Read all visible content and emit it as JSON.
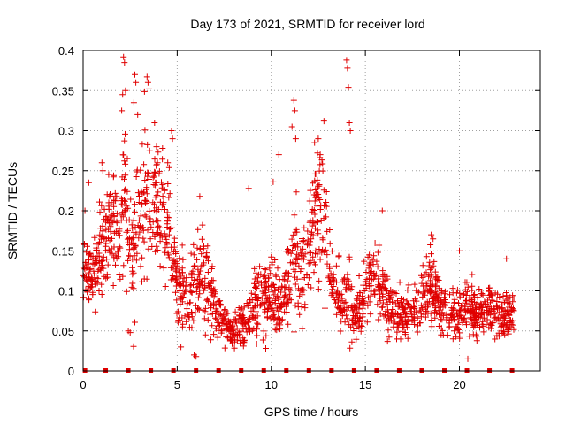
{
  "chart_data": {
    "type": "scatter",
    "title": "Day 173 of 2021, SRMTID for receiver lord",
    "xlabel": "GPS time / hours",
    "ylabel": "SRMTID / TECUs",
    "xlim": [
      0,
      24.3
    ],
    "ylim": [
      0,
      0.4
    ],
    "xticks": [
      0,
      5,
      10,
      15,
      20
    ],
    "xtick_labels": [
      "0",
      "5",
      "10",
      "15",
      "20"
    ],
    "yticks": [
      0,
      0.05,
      0.1,
      0.15,
      0.2,
      0.25,
      0.3,
      0.35,
      0.4
    ],
    "ytick_labels": [
      "0",
      "0.05",
      "0.1",
      "0.15",
      "0.2",
      "0.25",
      "0.3",
      "0.35",
      "0.4"
    ],
    "grid": true,
    "marker": "+",
    "color": "#e00000",
    "data_gap_markers_x": [
      0.1,
      1.2,
      2.4,
      3.6,
      4.8,
      6.0,
      7.2,
      8.4,
      9.6,
      10.8,
      12.0,
      13.2,
      14.4,
      15.6,
      16.8,
      18.0,
      19.2,
      20.4,
      21.6,
      22.8
    ],
    "envelope": {
      "x": [
        0.0,
        0.5,
        1.0,
        1.5,
        2.0,
        2.2,
        2.5,
        3.0,
        3.4,
        3.8,
        4.2,
        4.6,
        5.0,
        5.5,
        6.0,
        6.3,
        6.7,
        7.0,
        7.5,
        8.0,
        8.5,
        9.0,
        9.5,
        10.0,
        10.5,
        11.0,
        11.3,
        11.8,
        12.3,
        12.7,
        13.2,
        13.7,
        14.0,
        14.5,
        15.0,
        15.5,
        16.0,
        16.5,
        17.0,
        17.5,
        18.0,
        18.5,
        19.0,
        19.5,
        20.0,
        20.5,
        21.0,
        21.5,
        22.0,
        22.5,
        22.9
      ],
      "center": [
        0.13,
        0.12,
        0.15,
        0.19,
        0.17,
        0.24,
        0.13,
        0.2,
        0.21,
        0.2,
        0.19,
        0.17,
        0.11,
        0.09,
        0.11,
        0.13,
        0.1,
        0.08,
        0.06,
        0.05,
        0.06,
        0.08,
        0.09,
        0.09,
        0.08,
        0.11,
        0.14,
        0.13,
        0.19,
        0.2,
        0.12,
        0.08,
        0.1,
        0.07,
        0.1,
        0.12,
        0.09,
        0.07,
        0.07,
        0.07,
        0.09,
        0.11,
        0.08,
        0.07,
        0.07,
        0.08,
        0.07,
        0.08,
        0.07,
        0.07,
        0.07
      ],
      "spread": [
        0.045,
        0.04,
        0.05,
        0.06,
        0.06,
        0.09,
        0.06,
        0.08,
        0.08,
        0.07,
        0.07,
        0.06,
        0.04,
        0.04,
        0.05,
        0.05,
        0.04,
        0.03,
        0.02,
        0.02,
        0.025,
        0.035,
        0.04,
        0.045,
        0.035,
        0.05,
        0.07,
        0.06,
        0.07,
        0.07,
        0.05,
        0.03,
        0.05,
        0.03,
        0.04,
        0.045,
        0.035,
        0.03,
        0.025,
        0.025,
        0.035,
        0.045,
        0.03,
        0.025,
        0.025,
        0.03,
        0.025,
        0.03,
        0.025,
        0.025,
        0.025
      ]
    },
    "outliers": [
      {
        "x": 2.15,
        "y": 0.392
      },
      {
        "x": 2.2,
        "y": 0.385
      },
      {
        "x": 2.25,
        "y": 0.35
      },
      {
        "x": 2.1,
        "y": 0.345
      },
      {
        "x": 2.05,
        "y": 0.325
      },
      {
        "x": 3.4,
        "y": 0.367
      },
      {
        "x": 3.45,
        "y": 0.36
      },
      {
        "x": 3.5,
        "y": 0.352
      },
      {
        "x": 2.75,
        "y": 0.37
      },
      {
        "x": 2.8,
        "y": 0.36
      },
      {
        "x": 2.7,
        "y": 0.335
      },
      {
        "x": 2.9,
        "y": 0.32
      },
      {
        "x": 3.8,
        "y": 0.31
      },
      {
        "x": 4.7,
        "y": 0.3
      },
      {
        "x": 4.75,
        "y": 0.29
      },
      {
        "x": 3.9,
        "y": 0.28
      },
      {
        "x": 4.5,
        "y": 0.26
      },
      {
        "x": 11.2,
        "y": 0.338
      },
      {
        "x": 11.25,
        "y": 0.325
      },
      {
        "x": 11.1,
        "y": 0.305
      },
      {
        "x": 11.3,
        "y": 0.29
      },
      {
        "x": 12.8,
        "y": 0.312
      },
      {
        "x": 12.5,
        "y": 0.29
      },
      {
        "x": 12.3,
        "y": 0.285
      },
      {
        "x": 12.6,
        "y": 0.27
      },
      {
        "x": 14.0,
        "y": 0.388
      },
      {
        "x": 14.05,
        "y": 0.378
      },
      {
        "x": 14.1,
        "y": 0.354
      },
      {
        "x": 14.15,
        "y": 0.31
      },
      {
        "x": 14.2,
        "y": 0.3
      },
      {
        "x": 6.2,
        "y": 0.218
      },
      {
        "x": 8.8,
        "y": 0.228
      },
      {
        "x": 10.1,
        "y": 0.236
      },
      {
        "x": 10.4,
        "y": 0.27
      },
      {
        "x": 15.9,
        "y": 0.2
      },
      {
        "x": 18.5,
        "y": 0.17
      },
      {
        "x": 18.6,
        "y": 0.165
      },
      {
        "x": 20.0,
        "y": 0.15
      },
      {
        "x": 22.5,
        "y": 0.14
      },
      {
        "x": 5.9,
        "y": 0.02
      },
      {
        "x": 6.0,
        "y": 0.018
      },
      {
        "x": 5.2,
        "y": 0.03
      },
      {
        "x": 6.5,
        "y": 0.045
      },
      {
        "x": 2.4,
        "y": 0.05
      },
      {
        "x": 2.5,
        "y": 0.048
      },
      {
        "x": 0.1,
        "y": 0.2
      },
      {
        "x": 0.3,
        "y": 0.235
      },
      {
        "x": 1.0,
        "y": 0.26
      },
      {
        "x": 1.05,
        "y": 0.25
      }
    ],
    "seed": 173,
    "n_points": 1900
  }
}
